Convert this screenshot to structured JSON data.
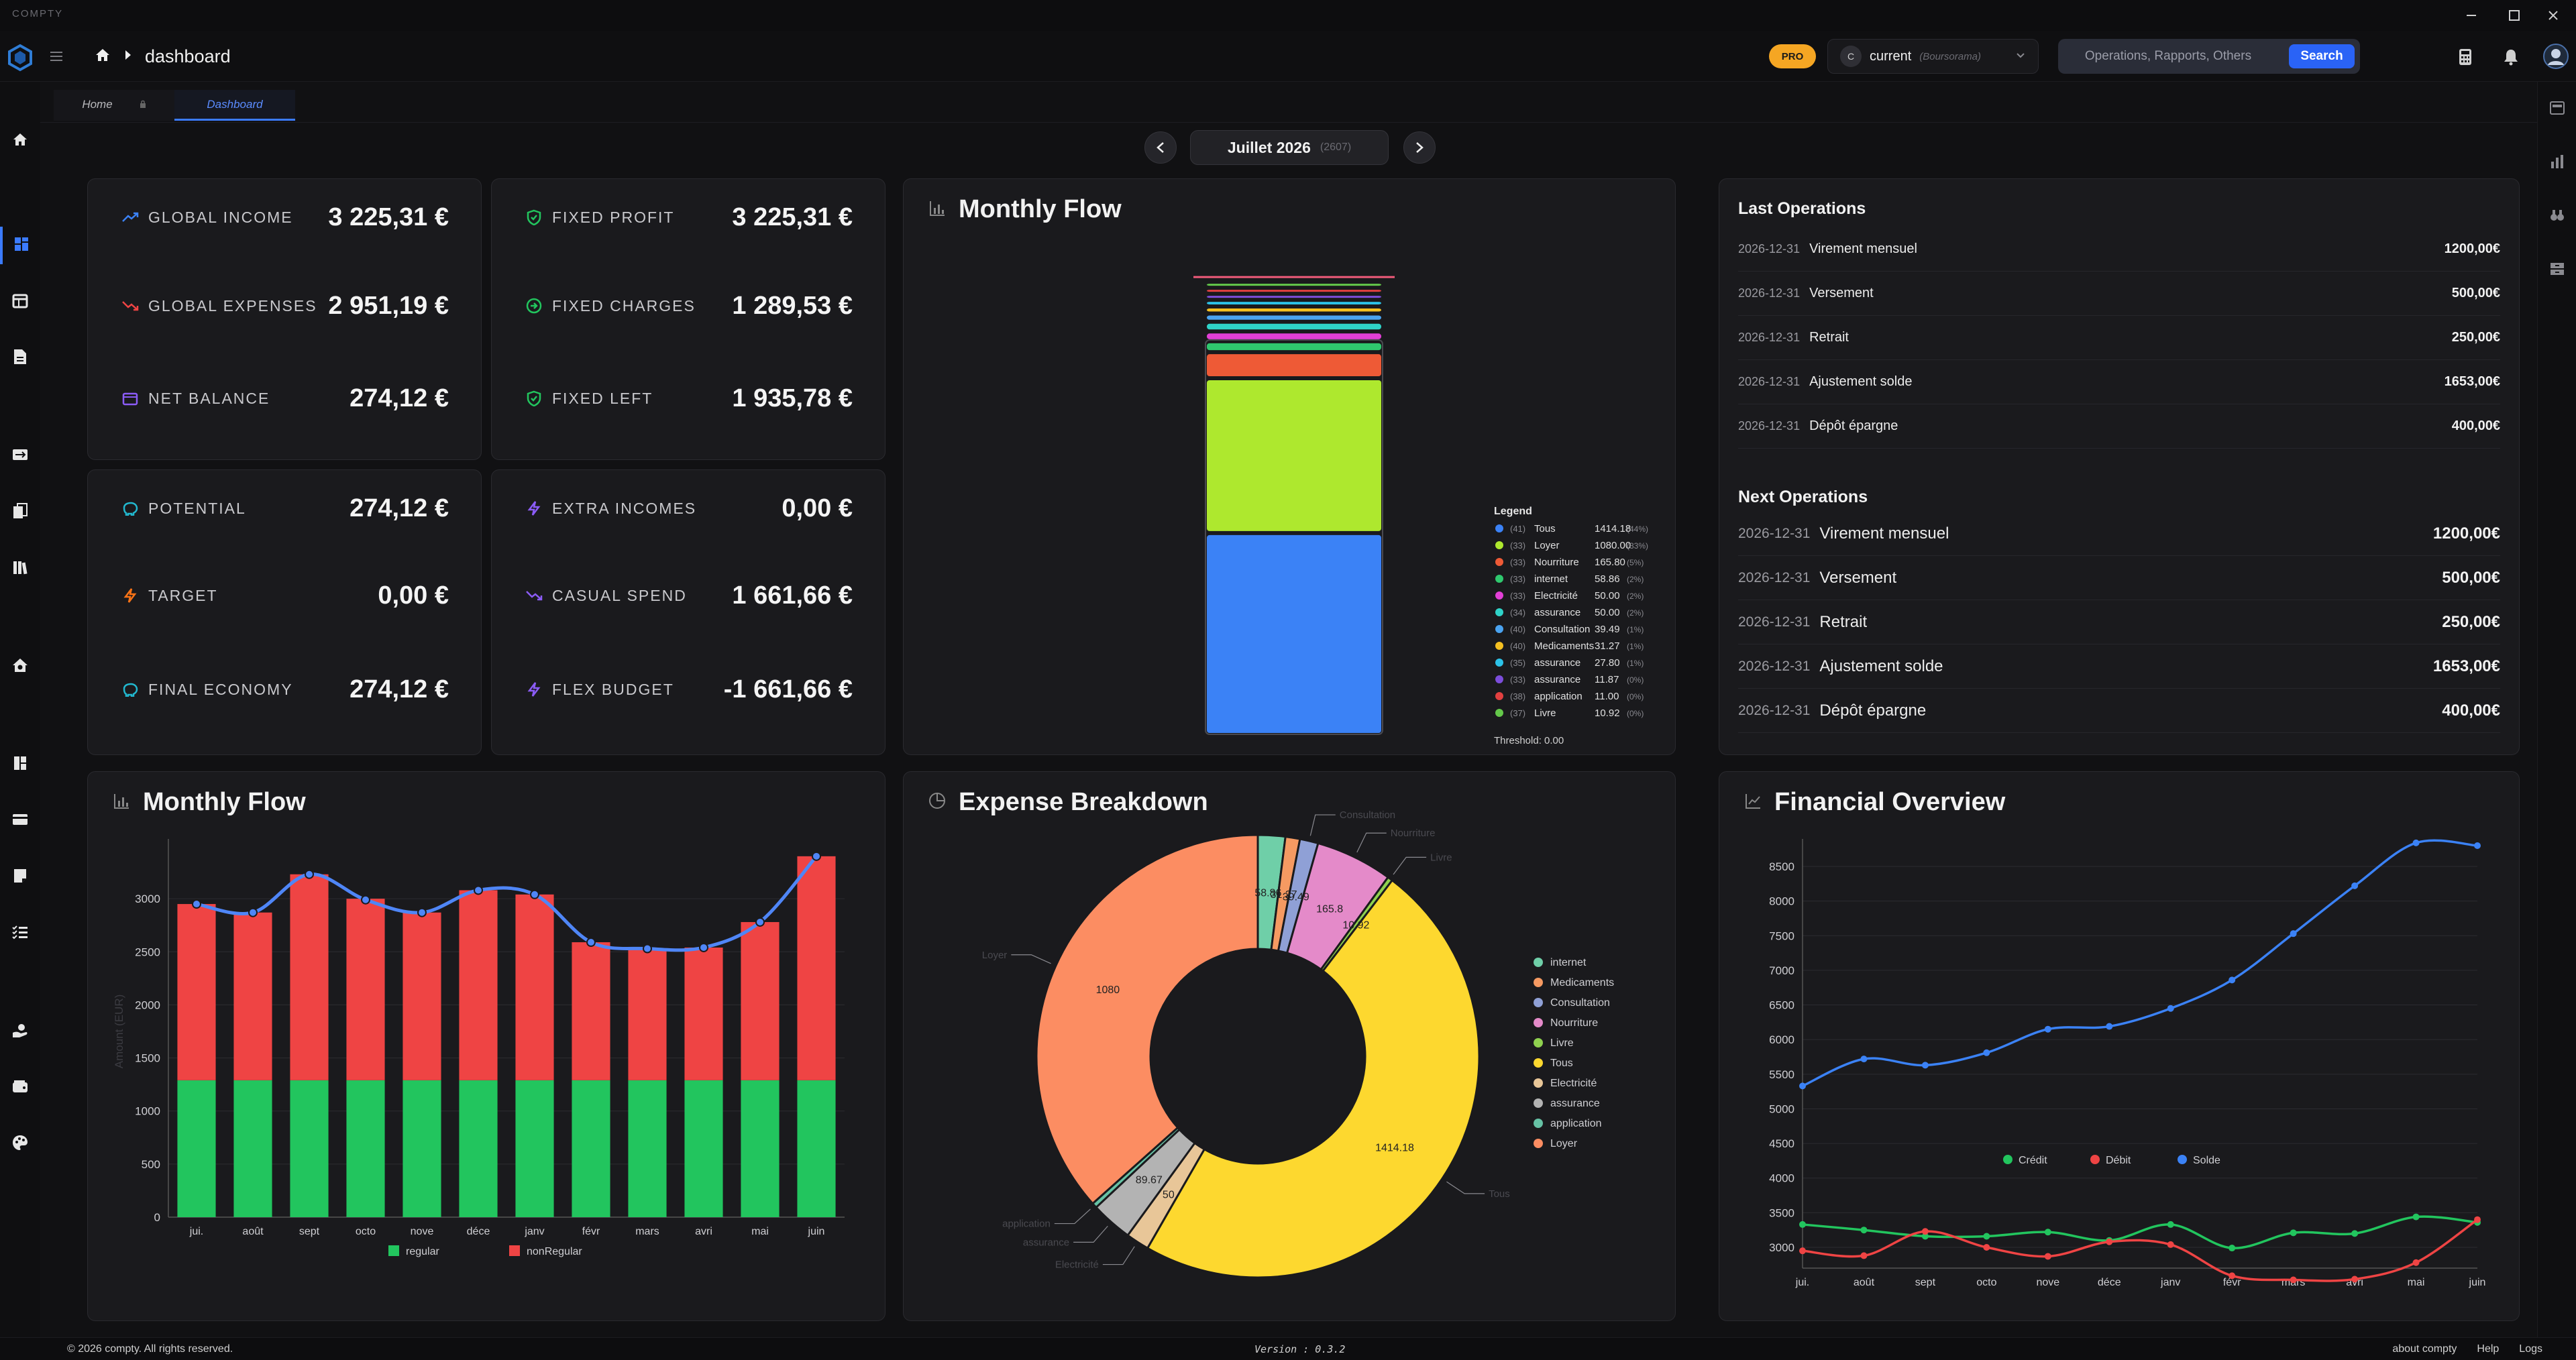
{
  "app": {
    "name": "COMPTY"
  },
  "header": {
    "page_title": "dashboard",
    "pro_badge": "PRO",
    "account": {
      "initial": "C",
      "name": "current",
      "bank": "(Boursorama)"
    },
    "search": {
      "placeholder": "Operations, Rapports, Others",
      "button_label": "Search"
    }
  },
  "tabs": [
    {
      "label": "Home",
      "active": false
    },
    {
      "label": "Dashboard",
      "active": true
    }
  ],
  "period": {
    "label": "Juillet 2026",
    "sub": "(2607)"
  },
  "stats": {
    "global_income": {
      "label": "GLOBAL INCOME",
      "value": "3 225,31 €"
    },
    "global_expenses": {
      "label": "GLOBAL EXPENSES",
      "value": "2 951,19 €"
    },
    "net_balance": {
      "label": "NET BALANCE",
      "value": "274,12 €"
    },
    "fixed_profit": {
      "label": "FIXED PROFIT",
      "value": "3 225,31 €"
    },
    "fixed_charges": {
      "label": "FIXED CHARGES",
      "value": "1 289,53 €"
    },
    "fixed_left": {
      "label": "FIXED LEFT",
      "value": "1 935,78 €"
    },
    "potential": {
      "label": "POTENTIAL",
      "value": "274,12 €"
    },
    "target": {
      "label": "TARGET",
      "value": "0,00 €"
    },
    "final_economy": {
      "label": "FINAL ECONOMY",
      "value": "274,12 €"
    },
    "extra_incomes": {
      "label": "EXTRA INCOMES",
      "value": "0,00 €"
    },
    "casual_spend": {
      "label": "CASUAL SPEND",
      "value": "1 661,66 €"
    },
    "flex_budget": {
      "label": "FLEX BUDGET",
      "value": "-1 661,66 €"
    }
  },
  "monthly_flow_stack": {
    "title": "Monthly Flow",
    "legend_title": "Legend",
    "threshold_label": "Threshold: 0.00",
    "items": [
      {
        "count": "(41)",
        "name": "Tous",
        "value": 1414.18,
        "value_text": "1414.18",
        "pct": "(44%)",
        "color": "#3b82f6"
      },
      {
        "count": "(33)",
        "name": "Loyer",
        "value": 1080.0,
        "value_text": "1080.00",
        "pct": "(33%)",
        "color": "#aee82e"
      },
      {
        "count": "(33)",
        "name": "Nourriture",
        "value": 165.8,
        "value_text": "165.80",
        "pct": "(5%)",
        "color": "#ee5a36"
      },
      {
        "count": "(33)",
        "name": "internet",
        "value": 58.86,
        "value_text": "58.86",
        "pct": "(2%)",
        "color": "#2fc86e"
      },
      {
        "count": "(33)",
        "name": "Electricité",
        "value": 50.0,
        "value_text": "50.00",
        "pct": "(2%)",
        "color": "#e23fd6"
      },
      {
        "count": "(34)",
        "name": "assurance",
        "value": 50.0,
        "value_text": "50.00",
        "pct": "(2%)",
        "color": "#2fd3c8"
      },
      {
        "count": "(40)",
        "name": "Consultation",
        "value": 39.49,
        "value_text": "39.49",
        "pct": "(1%)",
        "color": "#4aa3f0"
      },
      {
        "count": "(40)",
        "name": "Medicaments",
        "value": 31.27,
        "value_text": "31.27",
        "pct": "(1%)",
        "color": "#f5c021"
      },
      {
        "count": "(35)",
        "name": "assurance",
        "value": 27.8,
        "value_text": "27.80",
        "pct": "(1%)",
        "color": "#2cc2e8"
      },
      {
        "count": "(33)",
        "name": "assurance",
        "value": 11.87,
        "value_text": "11.87",
        "pct": "(0%)",
        "color": "#7c4ddb"
      },
      {
        "count": "(38)",
        "name": "application",
        "value": 11.0,
        "value_text": "11.00",
        "pct": "(0%)",
        "color": "#e24040"
      },
      {
        "count": "(37)",
        "name": "Livre",
        "value": 10.92,
        "value_text": "10.92",
        "pct": "(0%)",
        "color": "#64c84a"
      }
    ]
  },
  "last_operations": {
    "title": "Last Operations",
    "rows": [
      {
        "date": "2026-12-31",
        "label": "Virement mensuel",
        "amount": "1200,00€"
      },
      {
        "date": "2026-12-31",
        "label": "Versement",
        "amount": "500,00€"
      },
      {
        "date": "2026-12-31",
        "label": "Retrait",
        "amount": "250,00€"
      },
      {
        "date": "2026-12-31",
        "label": "Ajustement solde",
        "amount": "1653,00€"
      },
      {
        "date": "2026-12-31",
        "label": "Dépôt épargne",
        "amount": "400,00€"
      }
    ]
  },
  "next_operations": {
    "title": "Next Operations",
    "rows": [
      {
        "date": "2026-12-31",
        "label": "Virement mensuel",
        "amount": "1200,00€"
      },
      {
        "date": "2026-12-31",
        "label": "Versement",
        "amount": "500,00€"
      },
      {
        "date": "2026-12-31",
        "label": "Retrait",
        "amount": "250,00€"
      },
      {
        "date": "2026-12-31",
        "label": "Ajustement solde",
        "amount": "1653,00€"
      },
      {
        "date": "2026-12-31",
        "label": "Dépôt épargne",
        "amount": "400,00€"
      }
    ]
  },
  "cards": {
    "monthly_flow_bar_title": "Monthly Flow",
    "expense_breakdown_title": "Expense Breakdown",
    "financial_overview_title": "Financial Overview"
  },
  "chart_data": [
    {
      "type": "bar",
      "title": "Monthly Flow",
      "ylabel": "Amount (EUR)",
      "ylim": [
        0,
        3500
      ],
      "yticks": [
        0,
        500,
        1000,
        1500,
        2000,
        2500,
        3000
      ],
      "categories": [
        "jui.",
        "août",
        "sept",
        "octo",
        "nove",
        "déce",
        "janv",
        "févr",
        "mars",
        "avri",
        "mai",
        "juin"
      ],
      "series": [
        {
          "name": "regular",
          "color": "#22c55e",
          "values": [
            1290,
            1290,
            1290,
            1290,
            1290,
            1290,
            1290,
            1290,
            1290,
            1290,
            1290,
            1290
          ]
        },
        {
          "name": "nonRegular",
          "color": "#ef4444",
          "values": [
            1660,
            1580,
            1940,
            1710,
            1580,
            1790,
            1750,
            1300,
            1240,
            1250,
            1490,
            2110
          ]
        }
      ],
      "line_values": [
        2950,
        2870,
        3230,
        2990,
        2870,
        3080,
        3040,
        2590,
        2530,
        2540,
        2780,
        3400
      ],
      "stacked": true,
      "legend": "bottom"
    },
    {
      "type": "pie",
      "title": "Expense Breakdown",
      "donut": true,
      "slices": [
        {
          "name": "internet",
          "value": 58.86,
          "color": "#6fcfa8"
        },
        {
          "name": "Medicaments",
          "value": 31.27,
          "color": "#f59a62"
        },
        {
          "name": "Consultation",
          "value": 39.49,
          "color": "#8fa0d6"
        },
        {
          "name": "Nourriture",
          "value": 165.8,
          "color": "#e48ac9"
        },
        {
          "name": "Livre",
          "value": 10.92,
          "color": "#8fd14f"
        },
        {
          "name": "Tous",
          "value": 1414.18,
          "color": "#fdd82f"
        },
        {
          "name": "Electricité",
          "value": 50,
          "color": "#e8c698"
        },
        {
          "name": "assurance",
          "value": 89.67,
          "color": "#b3b3b3"
        },
        {
          "name": "application",
          "value": 11,
          "color": "#66c2a5"
        },
        {
          "name": "Loyer",
          "value": 1080,
          "color": "#fc8d62"
        }
      ],
      "slice_labels": [
        "1080",
        "1414.18",
        "165.8",
        "89.67",
        "50",
        "58.86",
        "31.27",
        "39.49",
        "10.92"
      ],
      "outer_labels": [
        "Loyer",
        "Tous",
        "Livre",
        "Nourriture",
        "Consultation",
        "application",
        "assurance",
        "Electricité"
      ],
      "legend": "right"
    },
    {
      "type": "line",
      "title": "Financial Overview",
      "ylim": [
        2700,
        8800
      ],
      "yticks": [
        3000,
        3500,
        4000,
        4500,
        5000,
        5500,
        6000,
        6500,
        7000,
        7500,
        8000,
        8500
      ],
      "categories": [
        "jui.",
        "août",
        "sept",
        "octo",
        "nove",
        "déce",
        "janv",
        "févr",
        "mars",
        "avri",
        "mai",
        "juin"
      ],
      "series": [
        {
          "name": "Crédit",
          "color": "#22c55e",
          "values": [
            3330,
            3250,
            3160,
            3160,
            3220,
            3100,
            3330,
            2990,
            3210,
            3200,
            3440,
            3360
          ]
        },
        {
          "name": "Débit",
          "color": "#ef4444",
          "values": [
            2950,
            2880,
            3230,
            3000,
            2870,
            3080,
            3040,
            2590,
            2530,
            2540,
            2780,
            3400
          ]
        },
        {
          "name": "Solde",
          "color": "#3b82f6",
          "values": [
            5330,
            5720,
            5630,
            5810,
            6150,
            6190,
            6450,
            6860,
            7530,
            8220,
            8840,
            8800
          ]
        }
      ],
      "legend": "bottom"
    }
  ],
  "footer": {
    "copyright": "© 2026 compty. All rights reserved.",
    "version": "Version : 0.3.2",
    "links": [
      "about compty",
      "Help",
      "Logs"
    ]
  }
}
